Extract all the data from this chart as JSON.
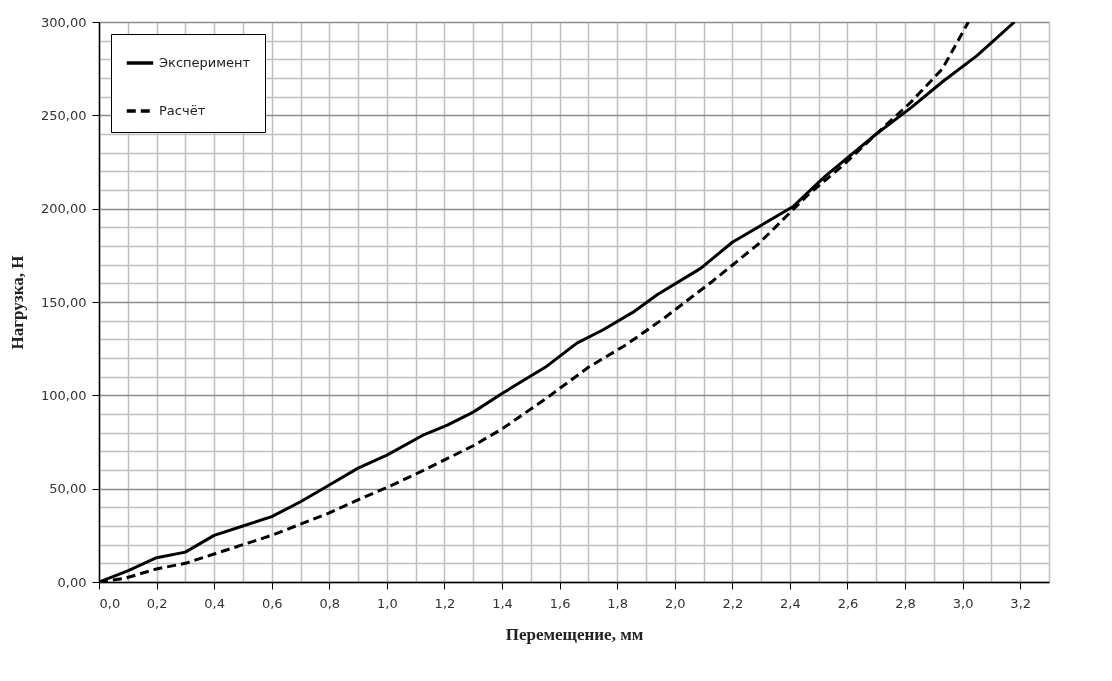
{
  "chart_data": {
    "type": "line",
    "xlabel": "Перемещение, мм",
    "ylabel": "Нагрузка, Н",
    "xlim": [
      0,
      3.3
    ],
    "ylim": [
      0,
      300
    ],
    "xticks": [
      {
        "value": 0,
        "label": "0,0"
      },
      {
        "value": 0.1,
        "label": null
      },
      {
        "value": 0.2,
        "label": "0,2"
      },
      {
        "value": 0.3,
        "label": null
      },
      {
        "value": 0.4,
        "label": "0,4"
      },
      {
        "value": 0.5,
        "label": null
      },
      {
        "value": 0.6,
        "label": "0,6"
      },
      {
        "value": 0.7,
        "label": null
      },
      {
        "value": 0.8,
        "label": "0,8"
      },
      {
        "value": 0.9,
        "label": null
      },
      {
        "value": 1.0,
        "label": "1,0"
      },
      {
        "value": 1.1,
        "label": null
      },
      {
        "value": 1.2,
        "label": "1,2"
      },
      {
        "value": 1.3,
        "label": null
      },
      {
        "value": 1.4,
        "label": "1,4"
      },
      {
        "value": 1.5,
        "label": null
      },
      {
        "value": 1.6,
        "label": "1,6"
      },
      {
        "value": 1.7,
        "label": null
      },
      {
        "value": 1.8,
        "label": "1,8"
      },
      {
        "value": 1.9,
        "label": null
      },
      {
        "value": 2.0,
        "label": "2,0"
      },
      {
        "value": 2.1,
        "label": null
      },
      {
        "value": 2.2,
        "label": "2,2"
      },
      {
        "value": 2.3,
        "label": null
      },
      {
        "value": 2.4,
        "label": "2,4"
      },
      {
        "value": 2.5,
        "label": null
      },
      {
        "value": 2.6,
        "label": "2,6"
      },
      {
        "value": 2.7,
        "label": null
      },
      {
        "value": 2.8,
        "label": "2,8"
      },
      {
        "value": 2.9,
        "label": null
      },
      {
        "value": 3.0,
        "label": "3,0"
      },
      {
        "value": 3.1,
        "label": null
      },
      {
        "value": 3.2,
        "label": "3,2"
      },
      {
        "value": 3.3,
        "label": null
      }
    ],
    "yticks": [
      {
        "value": 0,
        "label": "0,00"
      },
      {
        "value": 10,
        "label": null
      },
      {
        "value": 20,
        "label": null
      },
      {
        "value": 30,
        "label": null
      },
      {
        "value": 40,
        "label": null
      },
      {
        "value": 50,
        "label": "50,00"
      },
      {
        "value": 60,
        "label": null
      },
      {
        "value": 70,
        "label": null
      },
      {
        "value": 80,
        "label": null
      },
      {
        "value": 90,
        "label": null
      },
      {
        "value": 100,
        "label": "100,00"
      },
      {
        "value": 110,
        "label": null
      },
      {
        "value": 120,
        "label": null
      },
      {
        "value": 130,
        "label": null
      },
      {
        "value": 140,
        "label": null
      },
      {
        "value": 150,
        "label": "150,00"
      },
      {
        "value": 160,
        "label": null
      },
      {
        "value": 170,
        "label": null
      },
      {
        "value": 180,
        "label": null
      },
      {
        "value": 190,
        "label": null
      },
      {
        "value": 200,
        "label": "200,00"
      },
      {
        "value": 210,
        "label": null
      },
      {
        "value": 220,
        "label": null
      },
      {
        "value": 230,
        "label": null
      },
      {
        "value": 240,
        "label": null
      },
      {
        "value": 250,
        "label": "250,00"
      },
      {
        "value": 260,
        "label": null
      },
      {
        "value": 270,
        "label": null
      },
      {
        "value": 280,
        "label": null
      },
      {
        "value": 290,
        "label": null
      },
      {
        "value": 300,
        "label": "300,00"
      }
    ],
    "grid": true,
    "legend": "top left",
    "marker": "none",
    "series": [
      {
        "name": "Эксперимент",
        "color": "#000000",
        "line_style": "solid",
        "x": [
          0,
          0.1,
          0.2,
          0.3,
          0.4,
          0.5,
          0.6,
          0.7,
          0.8,
          0.9,
          1.0,
          1.13,
          1.21,
          1.3,
          1.4,
          1.55,
          1.66,
          1.75,
          1.86,
          1.94,
          2.09,
          2.2,
          2.41,
          2.52,
          2.7,
          2.82,
          2.93,
          3.05,
          3.18
        ],
        "values": [
          0,
          6,
          13,
          16,
          25,
          30,
          35,
          43,
          52,
          61,
          68,
          79,
          84,
          91,
          101,
          115,
          128,
          135,
          145,
          154,
          168,
          182,
          201,
          217,
          240,
          254,
          268,
          282,
          300
        ]
      },
      {
        "name": "Расчёт",
        "color": "#000000",
        "line_style": "dashed",
        "x": [
          0,
          0.09,
          0.2,
          0.3,
          0.4,
          0.5,
          0.6,
          0.7,
          0.8,
          0.9,
          1.02,
          1.13,
          1.3,
          1.4,
          1.55,
          1.7,
          1.83,
          1.96,
          2.13,
          2.29,
          2.46,
          2.59,
          2.7,
          2.82,
          2.93,
          3.02
        ],
        "values": [
          0,
          2,
          7,
          10,
          15,
          20,
          25,
          31,
          37,
          44,
          52,
          60,
          73,
          82,
          98,
          115,
          127,
          141,
          161,
          181,
          207,
          224,
          240,
          257,
          275,
          300
        ]
      }
    ]
  }
}
